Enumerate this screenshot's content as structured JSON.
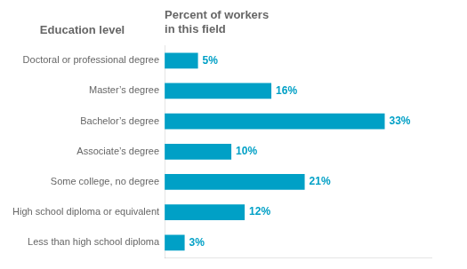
{
  "chart_data": {
    "type": "bar",
    "orientation": "horizontal",
    "title": "Percent of workers\nin this field",
    "ylabel": "Education level",
    "categories": [
      "Doctoral or professional degree",
      "Master’s degree",
      "Bachelor’s degree",
      "Associate’s degree",
      "Some college, no degree",
      "High school diploma or equivalent",
      "Less than high school diploma"
    ],
    "values": [
      5,
      16,
      33,
      10,
      21,
      12,
      3
    ],
    "value_labels": [
      "5%",
      "16%",
      "33%",
      "10%",
      "21%",
      "12%",
      "3%"
    ],
    "data_labels": true,
    "color": "#00a0c6",
    "xlim": [
      0,
      40
    ],
    "tick_labels": "y",
    "grid": false
  }
}
